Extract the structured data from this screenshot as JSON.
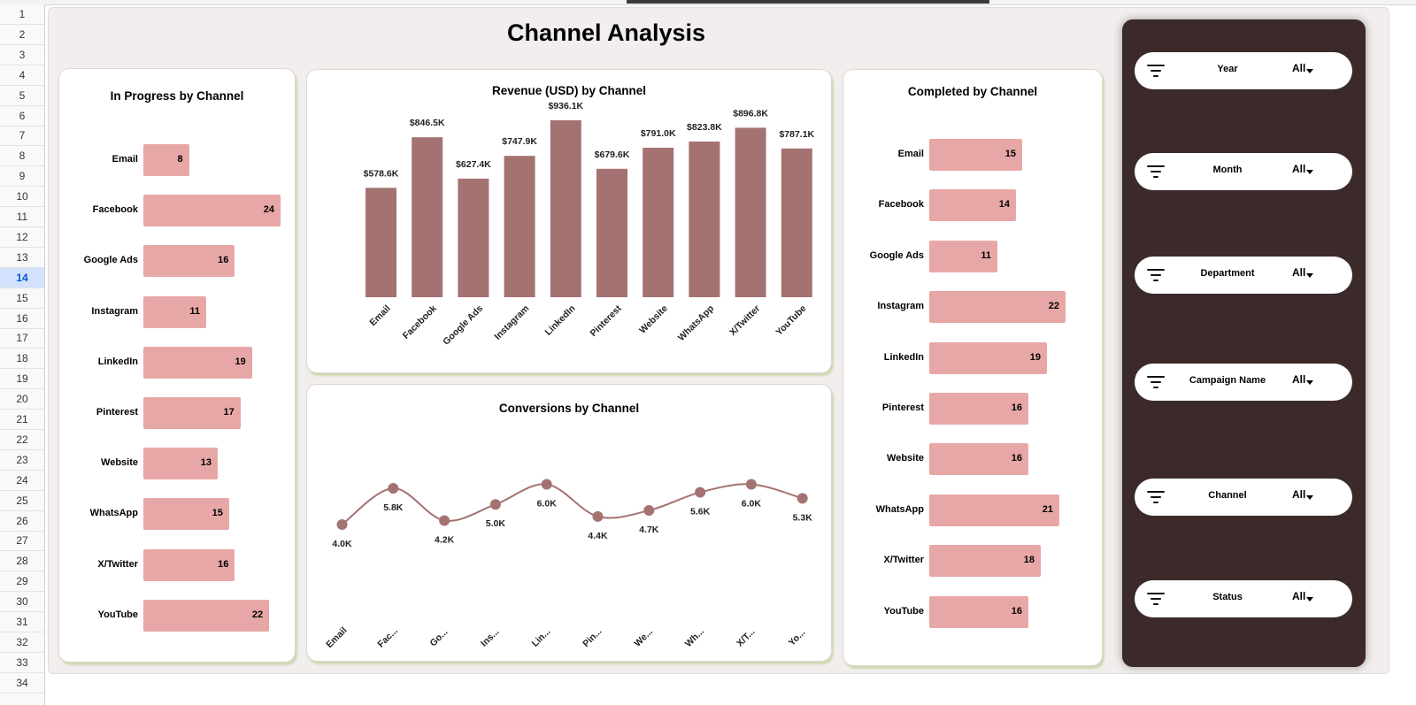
{
  "dashboard": {
    "title": "Channel Analysis"
  },
  "row_numbers": [
    "1",
    "2",
    "3",
    "4",
    "5",
    "6",
    "7",
    "8",
    "9",
    "10",
    "11",
    "12",
    "13",
    "14",
    "15",
    "16",
    "17",
    "18",
    "19",
    "20",
    "21",
    "22",
    "23",
    "24",
    "25",
    "26",
    "27",
    "28",
    "29",
    "30",
    "31",
    "32",
    "33",
    "34"
  ],
  "selected_row": "14",
  "filters": [
    {
      "label": "Year",
      "value": "All",
      "icon": "filter-icon"
    },
    {
      "label": "Month",
      "value": "All",
      "icon": "filter-icon"
    },
    {
      "label": "Department",
      "value": "All",
      "icon": "filter-icon"
    },
    {
      "label": "Campaign Name",
      "value": "All",
      "icon": "filter-icon"
    },
    {
      "label": "Channel",
      "value": "All",
      "icon": "filter-icon"
    },
    {
      "label": "Status",
      "value": "All",
      "icon": "filter-icon"
    }
  ],
  "colors": {
    "bar_light": "#e8a7a7",
    "bar_dark": "#a57272",
    "sidebar": "#3c2a2a",
    "dashboard_bg": "#f2eeee"
  },
  "chart_data": [
    {
      "id": "in_progress",
      "type": "bar",
      "orientation": "horizontal",
      "title": "In Progress by Channel",
      "categories": [
        "Email",
        "Facebook",
        "Google Ads",
        "Instagram",
        "LinkedIn",
        "Pinterest",
        "Website",
        "WhatsApp",
        "X/Twitter",
        "YouTube"
      ],
      "values": [
        8,
        24,
        16,
        11,
        19,
        17,
        13,
        15,
        16,
        22
      ],
      "labels": [
        "8",
        "24",
        "16",
        "11",
        "19",
        "17",
        "13",
        "15",
        "16",
        "22"
      ]
    },
    {
      "id": "revenue",
      "type": "bar",
      "orientation": "vertical",
      "title": "Revenue (USD) by Channel",
      "categories": [
        "Email",
        "Facebook",
        "Google Ads",
        "Instagram",
        "LinkedIn",
        "Pinterest",
        "Website",
        "WhatsApp",
        "X/Twitter",
        "YouTube"
      ],
      "values": [
        578600,
        846500,
        627400,
        747900,
        936100,
        679600,
        791000,
        823800,
        896800,
        787100
      ],
      "labels": [
        "$578.6K",
        "$846.5K",
        "$627.4K",
        "$747.9K",
        "$936.1K",
        "$679.6K",
        "$791.0K",
        "$823.8K",
        "$896.8K",
        "$787.1K"
      ],
      "ylim": [
        0,
        936100
      ]
    },
    {
      "id": "conversions",
      "type": "line",
      "title": "Conversions by Channel",
      "categories": [
        "Email",
        "Fac...",
        "Go...",
        "Ins...",
        "Lin...",
        "Pin...",
        "We...",
        "Wh...",
        "X/T...",
        "Yo..."
      ],
      "values": [
        4000,
        5800,
        4200,
        5000,
        6000,
        4400,
        4700,
        5600,
        6000,
        5300
      ],
      "labels": [
        "4.0K",
        "5.8K",
        "4.2K",
        "5.0K",
        "6.0K",
        "4.4K",
        "4.7K",
        "5.6K",
        "6.0K",
        "5.3K"
      ],
      "label_side": [
        "below",
        "below",
        "below",
        "below",
        "below",
        "below",
        "below",
        "below",
        "above",
        "below"
      ]
    },
    {
      "id": "completed",
      "type": "bar",
      "orientation": "horizontal",
      "title": "Completed by Channel",
      "categories": [
        "Email",
        "Facebook",
        "Google Ads",
        "Instagram",
        "LinkedIn",
        "Pinterest",
        "Website",
        "WhatsApp",
        "X/Twitter",
        "YouTube"
      ],
      "values": [
        15,
        14,
        11,
        22,
        19,
        16,
        16,
        21,
        18,
        16
      ],
      "labels": [
        "15",
        "14",
        "11",
        "22",
        "19",
        "16",
        "16",
        "21",
        "18",
        "16"
      ]
    }
  ]
}
